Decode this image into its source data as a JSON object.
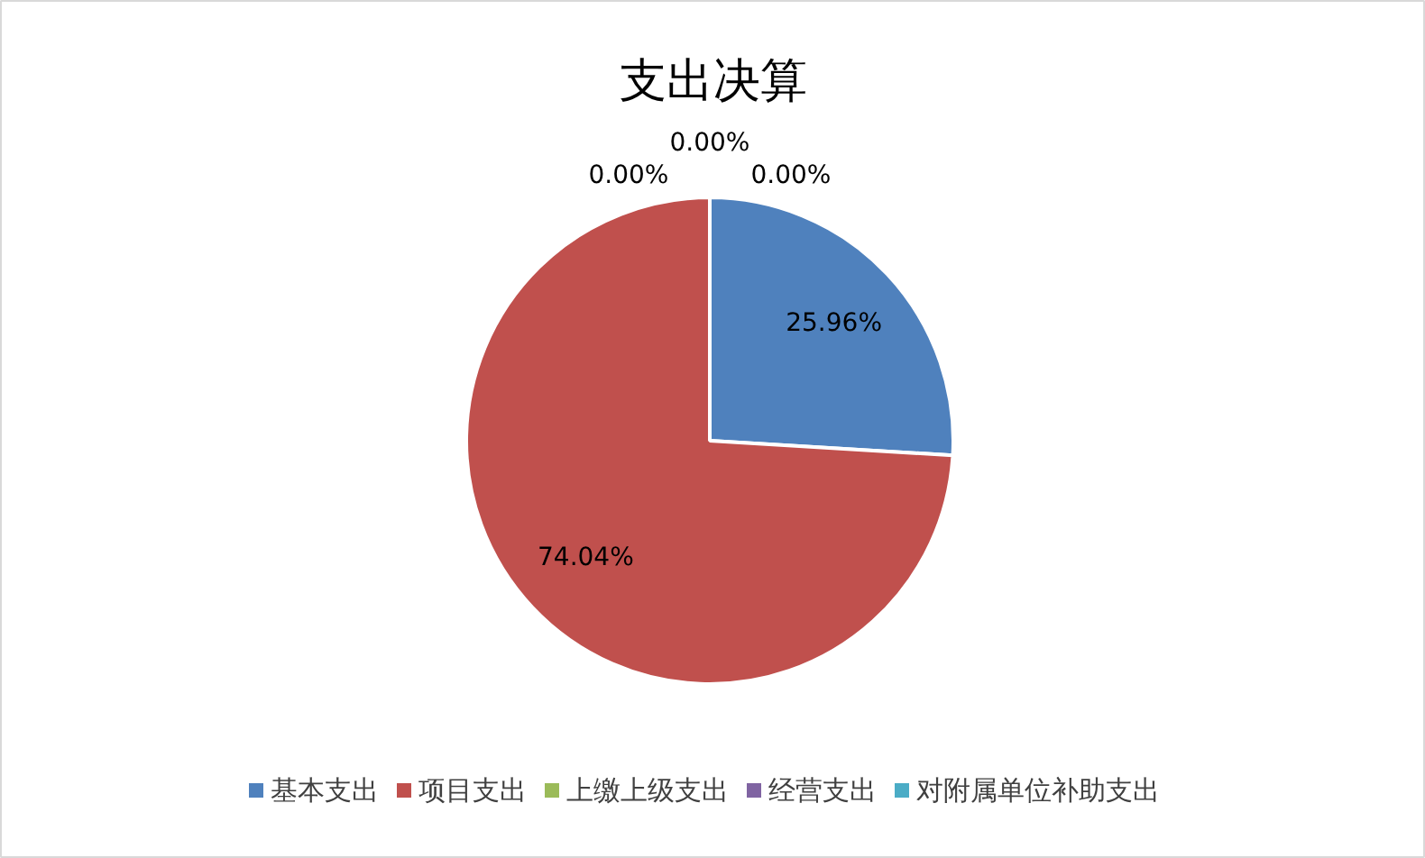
{
  "chart_data": {
    "type": "pie",
    "title": "支出决算",
    "categories": [
      "基本支出",
      "项目支出",
      "上缴上级支出",
      "经营支出",
      "对附属单位补助支出"
    ],
    "values": [
      25.96,
      74.04,
      0,
      0,
      0
    ],
    "value_labels": [
      "25.96%",
      "74.04%",
      "0.00%",
      "0.00%",
      "0.00%"
    ],
    "colors": [
      "#4f81bd",
      "#c0504d",
      "#9bbb59",
      "#8064a2",
      "#4bacc6"
    ],
    "data_labels": true,
    "legend": "bottom"
  }
}
